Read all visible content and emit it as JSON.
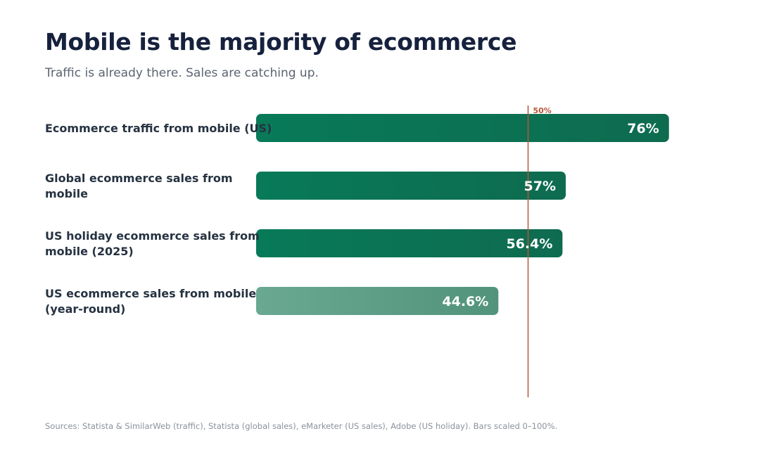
{
  "header": {
    "title": "Mobile is the majority of ecommerce",
    "subtitle": "Traffic is already there. Sales are catching up."
  },
  "footer": {
    "sources": "Sources: Statista & SimilarWeb (traffic), Statista (global sales), eMarketer (US sales), Adobe (US holiday). Bars scaled 0–100%."
  },
  "colors": {
    "bar_primary_start": "#087a58",
    "bar_primary_end": "#0e6b4f",
    "bar_muted_start": "#6aa892",
    "bar_muted_end": "#52937b",
    "reference_line": "#b5573a",
    "value_text": "#ffffff"
  },
  "chart_data": {
    "type": "bar",
    "orientation": "horizontal",
    "categories": [
      [
        "Ecommerce traffic from mobile (US)"
      ],
      [
        "Global ecommerce sales from",
        "mobile"
      ],
      [
        "US holiday ecommerce sales from",
        "mobile (2025)"
      ],
      [
        "US ecommerce sales from mobile",
        "(year-round)"
      ]
    ],
    "values": [
      76,
      57,
      56.4,
      44.6
    ],
    "value_labels": [
      "76%",
      "57%",
      "56.4%",
      "44.6%"
    ],
    "styles": [
      "primary",
      "primary",
      "primary",
      "muted"
    ],
    "xlim": [
      0,
      100
    ],
    "reference_line": {
      "value": 50,
      "label": "50%"
    },
    "grid": false,
    "legend": "none"
  }
}
